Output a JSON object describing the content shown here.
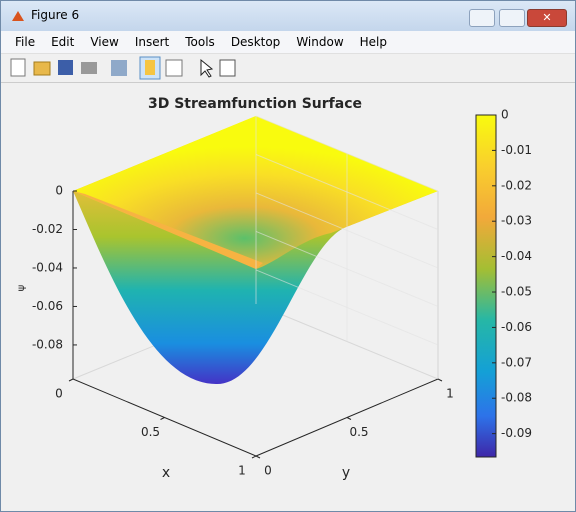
{
  "window": {
    "title": "Figure 6",
    "menu": [
      "File",
      "Edit",
      "View",
      "Insert",
      "Tools",
      "Desktop",
      "Window",
      "Help"
    ]
  },
  "chart_data": {
    "type": "surface",
    "title": "3D Streamfunction Surface",
    "x_label": "x",
    "y_label": "y",
    "z_label": "ψ",
    "xlim": [
      0,
      1
    ],
    "xticks": [
      0,
      0.5,
      1
    ],
    "ylim": [
      0,
      1
    ],
    "yticks": [
      0,
      0.5,
      1
    ],
    "zlim": [
      -0.0977,
      0
    ],
    "zticks": [
      0,
      -0.02,
      -0.04,
      -0.06,
      -0.08
    ],
    "grid": true,
    "colorbar": {
      "lim": [
        -0.0966,
        0
      ],
      "ticks": [
        0,
        -0.01,
        -0.02,
        -0.03,
        -0.04,
        -0.05,
        -0.06,
        -0.07,
        -0.08,
        -0.09
      ]
    }
  }
}
